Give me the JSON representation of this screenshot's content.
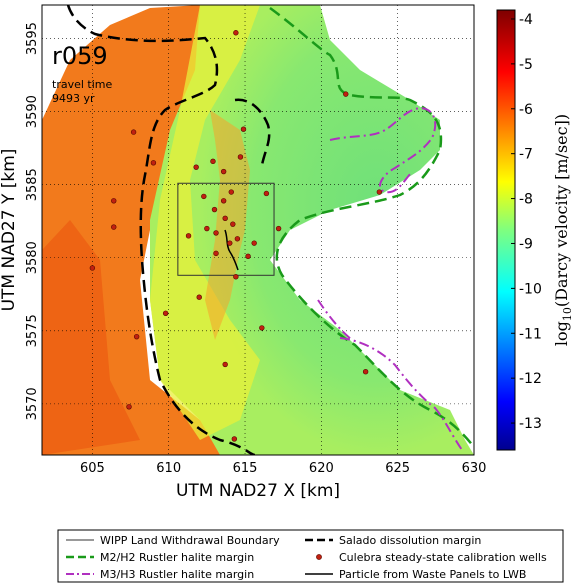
{
  "chart_data": {
    "type": "heatmap",
    "annotation": {
      "run_id": "r059",
      "travel_time_label": "travel time",
      "travel_time_value": "9493 yr"
    },
    "xlabel": "UTM NAD27 X [km]",
    "ylabel": "UTM NAD27 Y [km]",
    "xlim": [
      601.7,
      630
    ],
    "ylim": [
      3566.5,
      3597.3
    ],
    "x_ticks": [
      "605",
      "610",
      "615",
      "620",
      "625",
      "630"
    ],
    "y_ticks": [
      "3570",
      "3575",
      "3580",
      "3585",
      "3590",
      "3595"
    ],
    "grid": true,
    "colorbar": {
      "label": "log10(Darcy velocity [m/sec])",
      "label_main": "log",
      "label_sub": "10",
      "label_rest": "(Darcy velocity [m/sec])",
      "range": [
        -13.6,
        -3.8
      ],
      "ticks": [
        "-4",
        "-5",
        "-6",
        "-7",
        "-8",
        "-9",
        "-10",
        "-11",
        "-12",
        "-13"
      ],
      "colormap": "jet"
    },
    "wipp_boundary": {
      "x": [
        610.6,
        616.9
      ],
      "y": [
        3578.8,
        3585.1
      ]
    },
    "wells": [
      [
        614.4,
        3595.4
      ],
      [
        607.7,
        3588.6
      ],
      [
        609.0,
        3586.5
      ],
      [
        606.4,
        3583.9
      ],
      [
        606.4,
        3582.1
      ],
      [
        605.0,
        3579.3
      ],
      [
        609.8,
        3576.2
      ],
      [
        607.9,
        3574.6
      ],
      [
        613.7,
        3572.7
      ],
      [
        613.1,
        3580.3
      ],
      [
        611.3,
        3581.5
      ],
      [
        612.5,
        3582.0
      ],
      [
        613.0,
        3583.3
      ],
      [
        613.6,
        3583.9
      ],
      [
        614.1,
        3584.5
      ],
      [
        612.3,
        3584.2
      ],
      [
        613.6,
        3585.9
      ],
      [
        612.9,
        3586.6
      ],
      [
        614.7,
        3586.9
      ],
      [
        613.1,
        3581.7
      ],
      [
        614.0,
        3581.0
      ],
      [
        614.2,
        3582.3
      ],
      [
        613.7,
        3582.7
      ],
      [
        615.6,
        3581.0
      ],
      [
        614.5,
        3581.3
      ],
      [
        616.4,
        3584.4
      ],
      [
        615.2,
        3580.1
      ],
      [
        611.8,
        3586.2
      ],
      [
        614.4,
        3578.7
      ],
      [
        616.1,
        3575.2
      ],
      [
        612.0,
        3577.3
      ],
      [
        614.9,
        3588.8
      ],
      [
        621.6,
        3591.2
      ],
      [
        623.8,
        3584.5
      ],
      [
        622.9,
        3572.2
      ],
      [
        607.4,
        3569.8
      ],
      [
        614.3,
        3567.6
      ],
      [
        617.2,
        3582.0
      ]
    ],
    "legend": {
      "placement": "bottom",
      "entries": [
        {
          "label": "WIPP Land Withdrawal Boundary",
          "style": "thin-black-line"
        },
        {
          "label": "Salado dissolution margin",
          "style": "black-dashed"
        },
        {
          "label": "M2/H2 Rustler halite margin",
          "style": "green-dashed"
        },
        {
          "label": "Culebra steady-state calibration wells",
          "style": "red-dot"
        },
        {
          "label": "M3/H3 Rustler halite margin",
          "style": "purple-dashdot"
        },
        {
          "label": "Particle from Waste Panels to LWB",
          "style": "black-line"
        }
      ]
    },
    "colors": {
      "salado": "#000000",
      "m2h2": "#1a9a1a",
      "m3h3": "#b030c0",
      "wells": "#c02010",
      "particle": "#000000"
    }
  }
}
